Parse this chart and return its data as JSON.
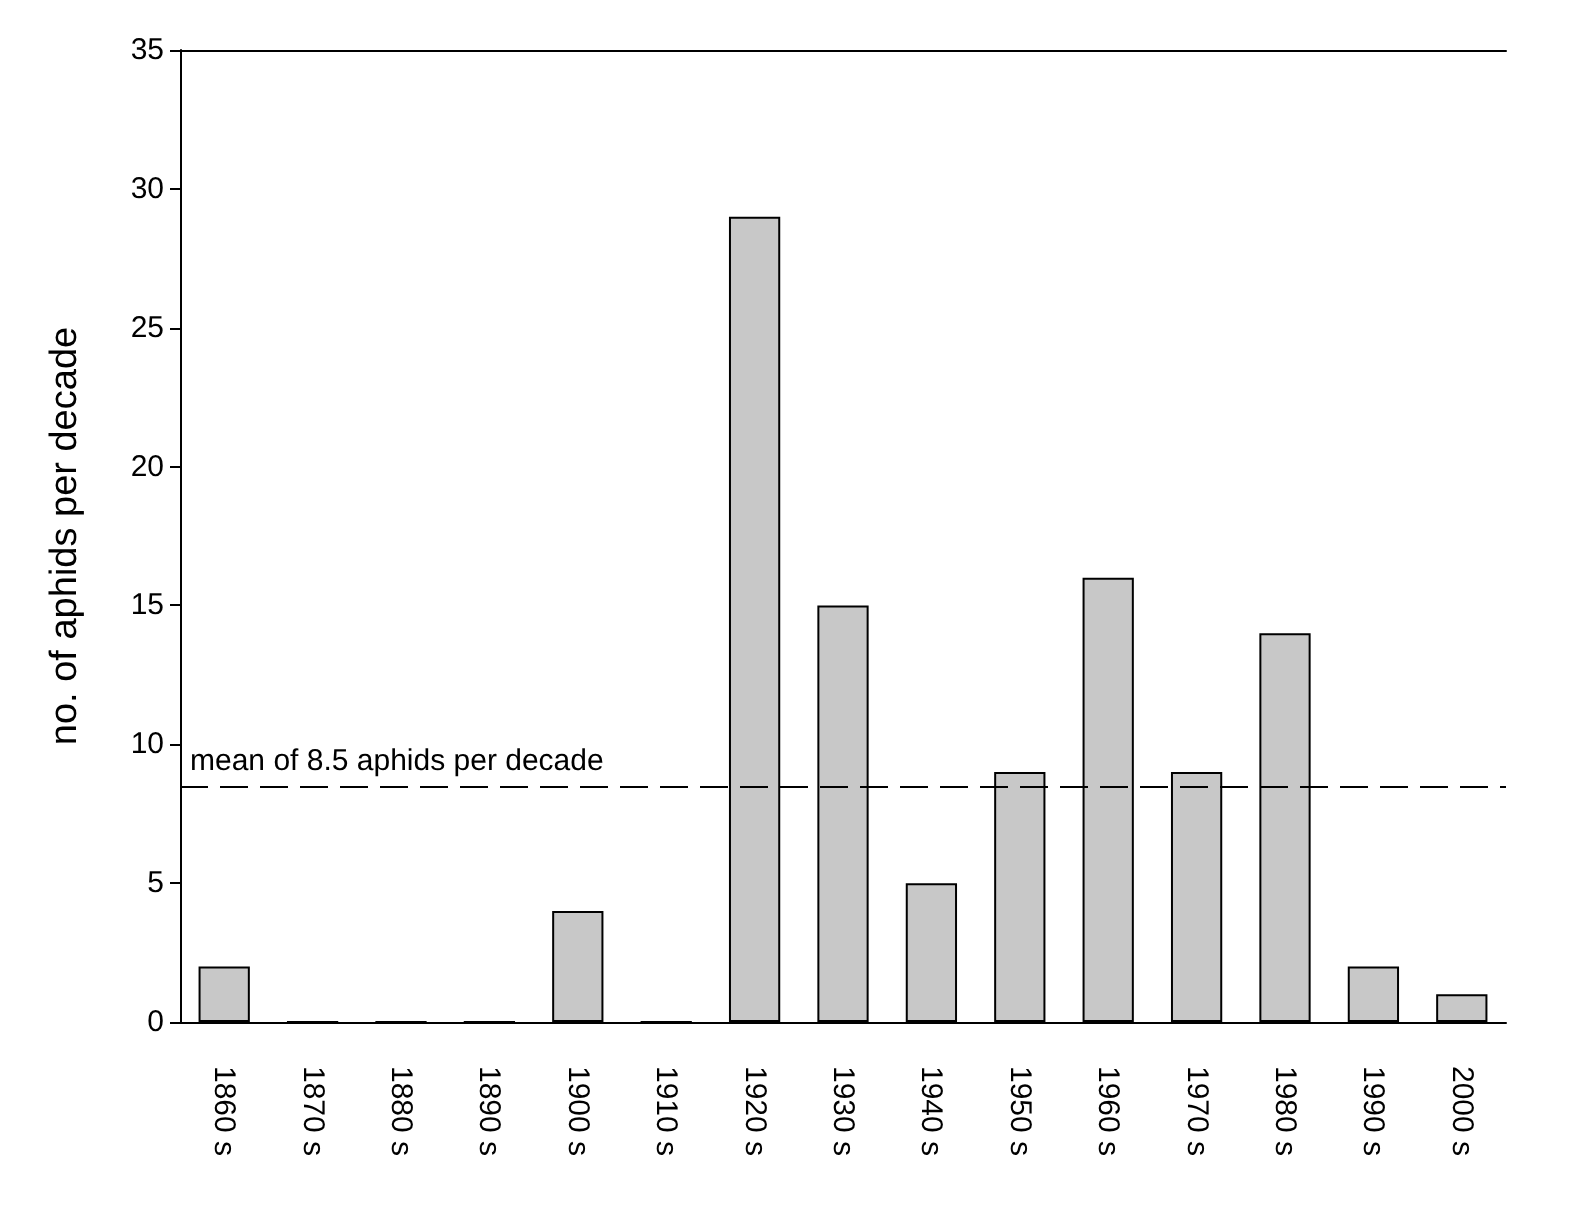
{
  "chart_data": {
    "type": "bar",
    "ylabel": "no. of aphids per decade",
    "categories": [
      "1860 s",
      "1870 s",
      "1880 s",
      "1890 s",
      "1900 s",
      "1910 s",
      "1920 s",
      "1930 s",
      "1940 s",
      "1950 s",
      "1960 s",
      "1970 s",
      "1980 s",
      "1990 s",
      "2000 s"
    ],
    "values": [
      2,
      0,
      0,
      0,
      4,
      0,
      29,
      15,
      5,
      9,
      16,
      9,
      14,
      2,
      1
    ],
    "color": "#c8c8c8",
    "ylim": [
      0,
      35
    ],
    "yticks": [
      0,
      5,
      10,
      15,
      20,
      25,
      30,
      35
    ],
    "ref_lines": [
      {
        "axis": "y",
        "value": 8.5,
        "label": "mean of 8.5 aphids per decade",
        "line_style": "dashed",
        "color": "#000000"
      }
    ],
    "grid": false
  }
}
